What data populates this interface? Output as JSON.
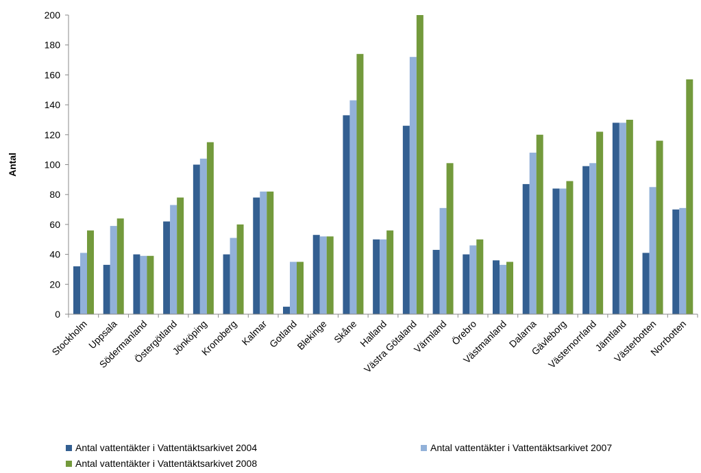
{
  "chart_data": {
    "type": "bar",
    "title": "",
    "xlabel": "",
    "ylabel": "Antal",
    "ylim": [
      0,
      200
    ],
    "yticks": [
      0,
      20,
      40,
      60,
      80,
      100,
      120,
      140,
      160,
      180,
      200
    ],
    "grid": false,
    "legend_position": "bottom",
    "categories": [
      "Stockholm",
      "Uppsala",
      "Södermanland",
      "Östergötland",
      "Jönköping",
      "Kronoberg",
      "Kalmar",
      "Gotland",
      "Blekinge",
      "Skåne",
      "Halland",
      "Västra Götaland",
      "Värmland",
      "Örebro",
      "Västmanland",
      "Dalarna",
      "Gävleborg",
      "Västernorrland",
      "Jämtland",
      "Västerbotten",
      "Norrbotten"
    ],
    "series": [
      {
        "name": "Antal vattentäkter i Vattentäktsarkivet 2004",
        "color": "#335f91",
        "values": [
          32,
          33,
          40,
          62,
          100,
          40,
          78,
          5,
          53,
          133,
          50,
          126,
          43,
          40,
          36,
          87,
          84,
          99,
          128,
          41,
          70
        ]
      },
      {
        "name": "Antal vattentäkter i Vattentäktsarkivet 2007",
        "color": "#92b1d9",
        "values": [
          41,
          59,
          39,
          73,
          104,
          51,
          82,
          35,
          52,
          143,
          50,
          172,
          71,
          46,
          33,
          108,
          84,
          101,
          128,
          85,
          71
        ]
      },
      {
        "name": "Antal vattentäkter i Vattentäktsarkivet 2008",
        "color": "#739a3c",
        "values": [
          56,
          64,
          39,
          78,
          115,
          60,
          82,
          35,
          52,
          174,
          56,
          200,
          101,
          50,
          35,
          120,
          89,
          122,
          130,
          116,
          157
        ]
      }
    ]
  }
}
